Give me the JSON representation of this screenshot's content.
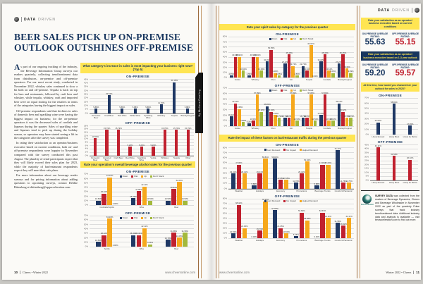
{
  "colors": {
    "navy": "#1f3864",
    "red": "#c0202e",
    "orange": "#f6a81c",
    "green": "#a3b93c",
    "banner_yellow": "#ffe552",
    "headline_navy": "#17355e"
  },
  "left_page": {
    "kicker_bold": "DATA",
    "kicker_light": "DRIVEN",
    "headline_line1": "BEER SALES PICK UP ON-PREMISE",
    "headline_line2": "OUTLOOK OUTSHINES OFF-PREMISE",
    "byline": "By Melissa Dowling",
    "article": {
      "dropcap": "A",
      "p1": "s part of our ongoing tracking of the industry, the Beverage Information Group surveys our readers quarterly, collecting trend/sentiment data from distributors, on-premise and off-premise operators. For our most recent study, conducted in November 2022, whiskey sales continued to slow a bit both on and off-premise. Tequila is back on top for bars and restaurants, followed by craft beer and whiskey, while tequila, whiskey, craft and imported beer were on equal footing for the retailers in terms of the categories having the biggest impact on sales.",
      "p2": "Off-premise respondents said that declines in sales of domestic beer and sparkling wine were having the biggest impact on business; for the on-premise operators it was the decreased sales of cordials and liqueurs during the quarter. Sales of sparkling wine and liqueurs tend to pick up during the holiday season, so operators may have started seeing a lift in the categories after the survey was completed.",
      "p3": "In rating their satisfaction as an operator/business executive based on current conditions, both on- and off-premise respondents were happier in November compared with the survey conducted this past August. The plurality of retail participants expect that they will likely exceed their sales plan for 2023, while the majority of bar/restaurant respondents expect they will meet their sale plans.",
      "p4": "For more information about our beverage reader surveys and for pricing information about adding questions to upcoming surveys, contact Debbie Rittenberg at drittenberg@epgacceleration.com."
    },
    "footer_page": "10",
    "footer_mag": "Cheers • Winter 2022",
    "footer_site": "www.cheersonline.com"
  },
  "right_page": {
    "kicker_bold": "DATA",
    "kicker_light": "DRIVEN",
    "satisfaction_current": {
      "banner": "Rate your satisfaction as an operator/ business executive based on current conditions",
      "on_label": "ON-PREMISE AVERAGE RATING:",
      "on_value": "55.63",
      "off_label": "OFF-PREMISE AVERAGE RATING:",
      "off_value": "55.15"
    },
    "satisfaction_outlook": {
      "banner": "Rate your satisfaction as an operator/ business executive based on 1-3 year outlook",
      "on_label": "ON-PREMISE AVERAGE RATING:",
      "on_value": "59.20",
      "off_label": "OFF-PREMISE AVERAGE RATING:",
      "off_value": "59.57"
    },
    "survey_note_bold": "SURVEY DATA",
    "survey_note_rest": " was collected from the readers of Beverage Dynamics, Cheers and Beverage Wholesaler in November 2022 as part of the quarterly Pulse surveys that track industry trend/sentiment data. Additional industry data and analysis is available — visit bevacceleration.com to find out more.",
    "logo_caption": "BevAcceleration",
    "footer_site": "www.cheersonline.com",
    "footer_mag": "Winter 2022 • Cheers",
    "footer_page": "11"
  },
  "chart_data": [
    {
      "id": "category-impact-on-premise",
      "type": "bar",
      "panel_title": "What category's increase in sales is most impacting your business right now? (Top 5)",
      "title": "ON-PREMISE",
      "categories": [
        "Domestic Beer",
        "Craft Beer",
        "Red Wine",
        "White Wine",
        "Sparkling Wine",
        "Whiskey",
        "Tequila",
        "Brandy/Cognac"
      ],
      "values": [
        5.88,
        23.53,
        5.88,
        5.88,
        5.88,
        11.76,
        41.18,
        5.88
      ],
      "color": "#1f3864",
      "ylim": [
        0,
        45
      ],
      "ytick": 5,
      "unit": "%"
    },
    {
      "id": "category-impact-off-premise",
      "type": "bar",
      "title": "OFF-PREMISE",
      "categories": [
        "Domestic Beer",
        "Imported Beer",
        "Craft Beer",
        "Red Wine",
        "Sparkling Wine",
        "Vodka",
        "Whiskey",
        "Tequila",
        "Other"
      ],
      "values": [
        10.53,
        15.79,
        15.79,
        5.26,
        5.26,
        5.26,
        15.79,
        15.79,
        15.79
      ],
      "color": "#c0202e",
      "ylim": [
        0,
        18
      ],
      "ytick": 2,
      "unit": "%"
    },
    {
      "id": "overall-sales-on-premise",
      "type": "groupbar",
      "panel_title": "Rate your operation's overall beverage alcohol sales for the previous quarter",
      "title": "ON-PREMISE",
      "categories": [
        "Cocktails/Spirits",
        "Wine",
        "Beer"
      ],
      "series": [
        {
          "name": "Down",
          "color": "#1f3864",
          "values": [
            10.53,
            15.79,
            10.53
          ]
        },
        {
          "name": "Flat",
          "color": "#c0202e",
          "values": [
            26.32,
            31.58,
            36.84
          ]
        },
        {
          "name": "Up",
          "color": "#f6a81c",
          "values": [
            63.16,
            42.11,
            52.63
          ]
        },
        {
          "name": "Don't Stock",
          "color": "#a3b93c",
          "values": [
            0.0,
            10.53,
            10.53
          ]
        }
      ],
      "ylim": [
        0,
        70
      ],
      "ytick": 10,
      "legend": true,
      "unit": "%"
    },
    {
      "id": "overall-sales-off-premise",
      "type": "groupbar",
      "title": "OFF-PREMISE",
      "categories": [
        "Spirits",
        "Wine",
        "Beer"
      ],
      "series": [
        {
          "name": "Down",
          "color": "#1f3864",
          "values": [
            10.53,
            26.32,
            15.79
          ]
        },
        {
          "name": "Flat",
          "color": "#c0202e",
          "values": [
            26.32,
            26.32,
            31.58
          ]
        },
        {
          "name": "Up",
          "color": "#f6a81c",
          "values": [
            63.16,
            42.11,
            21.05
          ]
        },
        {
          "name": "Don't Stock",
          "color": "#a3b93c",
          "values": [
            0.0,
            5.26,
            31.58
          ]
        }
      ],
      "ylim": [
        0,
        70
      ],
      "ytick": 10,
      "legend": true,
      "unit": "%"
    },
    {
      "id": "spirit-sales-on-premise",
      "type": "groupbar",
      "panel_title": "Rate your spirit sales by category for the previous quarter",
      "title": "ON-PREMISE",
      "categories": [
        "Vodka",
        "Whiskey",
        "Rum",
        "Gin",
        "Tequila",
        "Cordials",
        "Brandy/Cognac"
      ],
      "series": [
        {
          "name": "Down",
          "color": "#1f3864",
          "values": [
            4.55,
            4.55,
            31.82,
            27.27,
            22.73,
            31.82,
            27.27
          ]
        },
        {
          "name": "Flat",
          "color": "#c0202e",
          "values": [
            40.91,
            40.91,
            54.55,
            45.45,
            13.64,
            45.45,
            45.45
          ]
        },
        {
          "name": "Up",
          "color": "#f6a81c",
          "values": [
            40.91,
            40.91,
            9.09,
            22.73,
            63.64,
            13.64,
            18.18
          ]
        },
        {
          "name": "Don't Stock",
          "color": "#a3b93c",
          "values": [
            13.64,
            13.64,
            4.55,
            4.55,
            0.0,
            9.09,
            9.09
          ]
        }
      ],
      "ylim": [
        0,
        80
      ],
      "ytick": 10,
      "legend": true,
      "unit": "%"
    },
    {
      "id": "spirit-sales-off-premise",
      "type": "groupbar",
      "title": "OFF-PREMISE",
      "categories": [
        "Vodka",
        "Whiskey",
        "Rum",
        "Gin",
        "Tequila",
        "Cordials",
        "Brandy/Cognac"
      ],
      "series": [
        {
          "name": "Down",
          "color": "#1f3864",
          "values": [
            18.42,
            5.26,
            36.84,
            15.79,
            15.79,
            21.05,
            42.11
          ]
        },
        {
          "name": "Flat",
          "color": "#c0202e",
          "values": [
            42.11,
            10.53,
            26.32,
            15.79,
            15.79,
            57.89,
            26.32
          ]
        },
        {
          "name": "Up",
          "color": "#f6a81c",
          "values": [
            31.58,
            57.89,
            21.05,
            57.89,
            57.89,
            10.53,
            15.79
          ]
        },
        {
          "name": "Don't Stock",
          "color": "#a3b93c",
          "values": [
            7.89,
            26.32,
            15.79,
            10.53,
            10.53,
            10.53,
            15.79
          ]
        }
      ],
      "ylim": [
        0,
        70
      ],
      "ytick": 10,
      "legend": true,
      "unit": "%"
    },
    {
      "id": "traffic-impact-on-premise",
      "type": "groupbar",
      "panel_title": "Rate the impact of these factors on bar/restaurant traffic during the previous quarter",
      "title": "ON-PREMISE",
      "categories": [
        "Weather",
        "Holidays",
        "Economy",
        "Promotions",
        "Beverage Trends",
        "Covid-19 Pandemic"
      ],
      "series": [
        {
          "name": "Hurt Demand",
          "color": "#1f3864",
          "values": [
            29.41,
            5.88,
            58.82,
            11.76,
            5.88,
            76.47
          ]
        },
        {
          "name": "No Impact",
          "color": "#c0202e",
          "values": [
            47.06,
            29.41,
            17.65,
            29.41,
            47.06,
            11.76
          ]
        },
        {
          "name": "Helped Demand",
          "color": "#f6a81c",
          "values": [
            29.41,
            58.82,
            17.65,
            52.94,
            47.06,
            11.76
          ]
        }
      ],
      "ylim": [
        0,
        80
      ],
      "ytick": 10,
      "legend": true,
      "unit": "%"
    },
    {
      "id": "traffic-impact-off-premise",
      "type": "groupbar",
      "title": "OFF-PREMISE",
      "categories": [
        "Weather",
        "Holidays",
        "Economy",
        "Promotions",
        "Beverage Trends",
        "Covid-19 Pandemic"
      ],
      "series": [
        {
          "name": "Hurt Demand",
          "color": "#1f3864",
          "values": [
            10.53,
            0.0,
            57.89,
            5.26,
            0.0,
            31.58
          ]
        },
        {
          "name": "No Impact",
          "color": "#c0202e",
          "values": [
            68.42,
            15.79,
            21.05,
            52.63,
            52.63,
            26.32
          ]
        },
        {
          "name": "Helped Demand",
          "color": "#f6a81c",
          "values": [
            21.05,
            78.95,
            10.53,
            36.84,
            42.11,
            42.11
          ]
        }
      ],
      "ylim": [
        0,
        80
      ],
      "ytick": 10,
      "legend": true,
      "unit": "%"
    },
    {
      "id": "outlook-2023-on-premise",
      "type": "bar",
      "panel_title": "At this time, how would you characterize your outlook for sales in 2023?",
      "title": "ON-PREMISE",
      "categories": [
        "Likely Exceed",
        "Likely Meet",
        "Likely be Below"
      ],
      "values": [
        23.53,
        58.82,
        17.65
      ],
      "color": "#1f3864",
      "ylim": [
        0,
        70
      ],
      "ytick": 10,
      "unit": "%"
    },
    {
      "id": "outlook-2023-off-premise",
      "type": "bar",
      "title": "OFF-PREMISE",
      "categories": [
        "Likely Exceed",
        "Likely Meet",
        "Likely be Below"
      ],
      "values": [
        42.11,
        31.58,
        26.32
      ],
      "color": "#c0202e",
      "ylim": [
        0,
        45
      ],
      "ytick": 5,
      "unit": "%"
    }
  ]
}
